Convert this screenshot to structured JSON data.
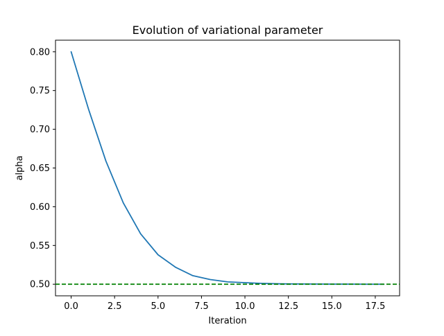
{
  "chart_data": {
    "type": "line",
    "title": "Evolution of variational parameter",
    "xlabel": "Iteration",
    "ylabel": "alpha",
    "xlim": [
      -0.9,
      18.9
    ],
    "ylim": [
      0.485,
      0.815
    ],
    "xticks": [
      0,
      2.5,
      5,
      7.5,
      10,
      12.5,
      15,
      17.5
    ],
    "xtick_labels": [
      "0.0",
      "2.5",
      "5.0",
      "7.5",
      "10.0",
      "12.5",
      "15.0",
      "17.5"
    ],
    "yticks": [
      0.5,
      0.55,
      0.6,
      0.65,
      0.7,
      0.75,
      0.8
    ],
    "ytick_labels": [
      "0.50",
      "0.55",
      "0.60",
      "0.65",
      "0.70",
      "0.75",
      "0.80"
    ],
    "grid": false,
    "series": [
      {
        "color": "#1f77b4",
        "x": [
          0,
          1,
          2,
          3,
          4,
          5,
          6,
          7,
          8,
          9,
          10,
          11,
          12,
          13,
          14,
          15,
          16,
          17,
          18
        ],
        "y": [
          0.8,
          0.726,
          0.659,
          0.605,
          0.565,
          0.538,
          0.522,
          0.511,
          0.506,
          0.503,
          0.502,
          0.501,
          0.5005,
          0.5003,
          0.5002,
          0.5001,
          0.5001,
          0.5,
          0.5
        ]
      }
    ],
    "reference_line": {
      "y": 0.5,
      "style": "dashed",
      "color": "#008000"
    }
  }
}
